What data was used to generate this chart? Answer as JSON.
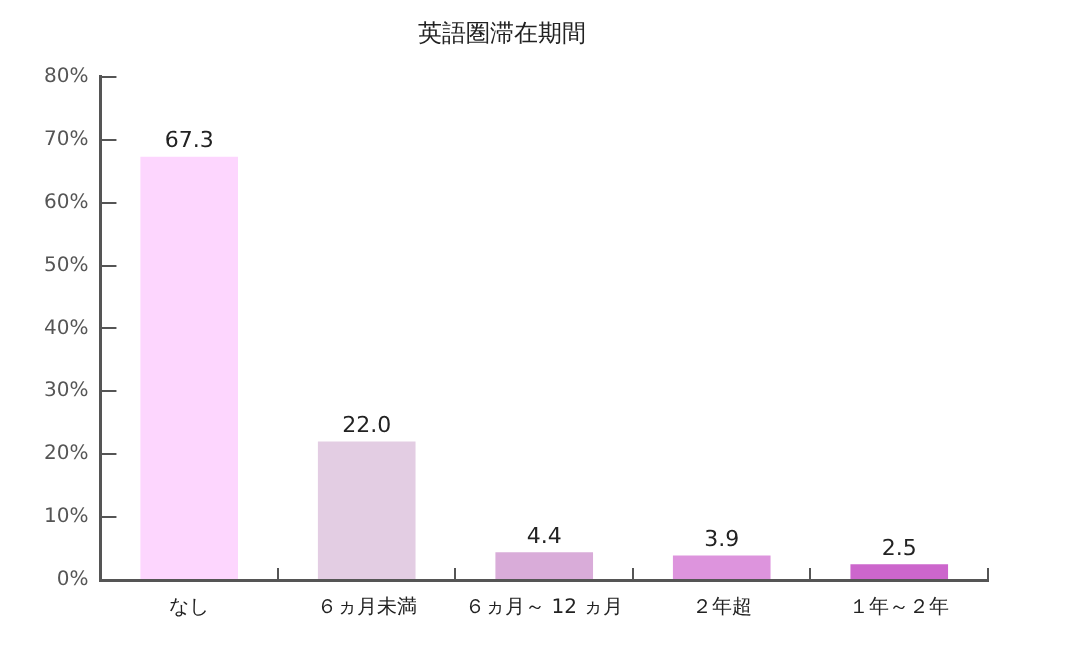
{
  "chart_data": {
    "type": "bar",
    "title": "英語圏滞在期間",
    "categories": [
      "なし",
      "６ヵ月未満",
      "６ヵ月～ 12 ヵ月",
      "２年超",
      "１年～２年"
    ],
    "values": [
      67.3,
      22.0,
      4.4,
      3.9,
      2.5
    ],
    "colors": [
      "#fdd6fe",
      "#e3cde3",
      "#d9acd9",
      "#dd94dd",
      "#cc66cc"
    ],
    "ylim": [
      0,
      80
    ],
    "yticks": [
      {
        "value": 0,
        "label": "0%"
      },
      {
        "value": 10,
        "label": "10%"
      },
      {
        "value": 20,
        "label": "20%"
      },
      {
        "value": 30,
        "label": "30%"
      },
      {
        "value": 40,
        "label": "40%"
      },
      {
        "value": 50,
        "label": "50%"
      },
      {
        "value": 60,
        "label": "60%"
      },
      {
        "value": 70,
        "label": "70%"
      },
      {
        "value": 80,
        "label": "80%"
      }
    ],
    "value_labels": [
      "67.3",
      "22.0",
      "4.4",
      "3.9",
      "2.5"
    ],
    "grid": false,
    "legend": false
  }
}
